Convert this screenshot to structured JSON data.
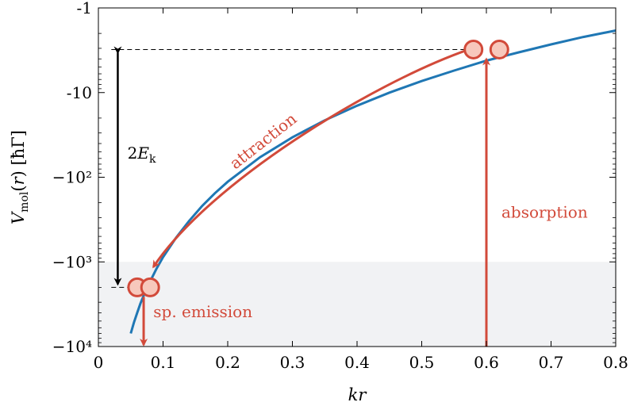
{
  "chart_data": {
    "type": "line",
    "xlabel": "kr",
    "ylabel": "V_mol(r) [ħΓ]",
    "xlim": [
      0,
      0.8
    ],
    "ylim": [
      -10000,
      -1
    ],
    "yscale": "symlog-negative",
    "grid": false,
    "x_ticks": [
      0,
      0.1,
      0.2,
      0.3,
      0.4,
      0.5,
      0.6,
      0.7,
      0.8
    ],
    "x_tick_labels": [
      "0",
      "0.1",
      "0.2",
      "0.3",
      "0.4",
      "0.5",
      "0.6",
      "0.7",
      "0.8"
    ],
    "y_ticks": [
      -1,
      -10,
      -100,
      -1000,
      -10000
    ],
    "y_tick_labels": [
      "-1",
      "-10",
      "−10²",
      "−10³",
      "−10⁴"
    ],
    "series": [
      {
        "color": "#1f77b4",
        "x": [
          0.05,
          0.055,
          0.06,
          0.065,
          0.07,
          0.08,
          0.09,
          0.1,
          0.12,
          0.14,
          0.16,
          0.18,
          0.2,
          0.25,
          0.3,
          0.35,
          0.4,
          0.45,
          0.5,
          0.55,
          0.6,
          0.65,
          0.7,
          0.75,
          0.8
        ],
        "y": [
          -7000,
          -5200,
          -4000,
          -3100,
          -2500,
          -1700,
          -1200,
          -880,
          -520,
          -330,
          -220,
          -155,
          -113,
          -58,
          -33.8,
          -21.3,
          -14.3,
          -10.0,
          -7.3,
          -5.5,
          -4.2,
          -3.35,
          -2.7,
          -2.2,
          -1.85
        ]
      }
    ],
    "shaded_region": {
      "y_from": -10000,
      "y_to": -1000,
      "color": "#f1f2f4"
    },
    "annotations": [
      {
        "text": "attraction",
        "color": "#d24a3a"
      },
      {
        "text": "absorption",
        "color": "#d24a3a"
      },
      {
        "text": "sp. emission",
        "color": "#d24a3a"
      },
      {
        "text": "2E_k",
        "color": "#000000"
      }
    ],
    "markers": [
      {
        "x": 0.58,
        "y": -3.1
      },
      {
        "x": 0.62,
        "y": -3.1
      },
      {
        "x": 0.06,
        "y": -2000
      },
      {
        "x": 0.08,
        "y": -2000
      }
    ],
    "arrows": [
      {
        "name": "absorption",
        "from": [
          0.6,
          -10000
        ],
        "to": [
          0.6,
          -3.1
        ]
      },
      {
        "name": "sp-emission",
        "from": [
          0.07,
          -2000
        ],
        "to": [
          0.07,
          -10000
        ]
      },
      {
        "name": "2Ek",
        "from": [
          0.03,
          -3.1
        ],
        "to": [
          0.03,
          -2000
        ]
      }
    ],
    "dashed_levels": [
      -3.1,
      -2000
    ],
    "colors": {
      "curve": "#1f77b4",
      "process": "#d24a3a",
      "marker_fill": "#f7c8bc",
      "shade": "#f1f2f4"
    }
  }
}
